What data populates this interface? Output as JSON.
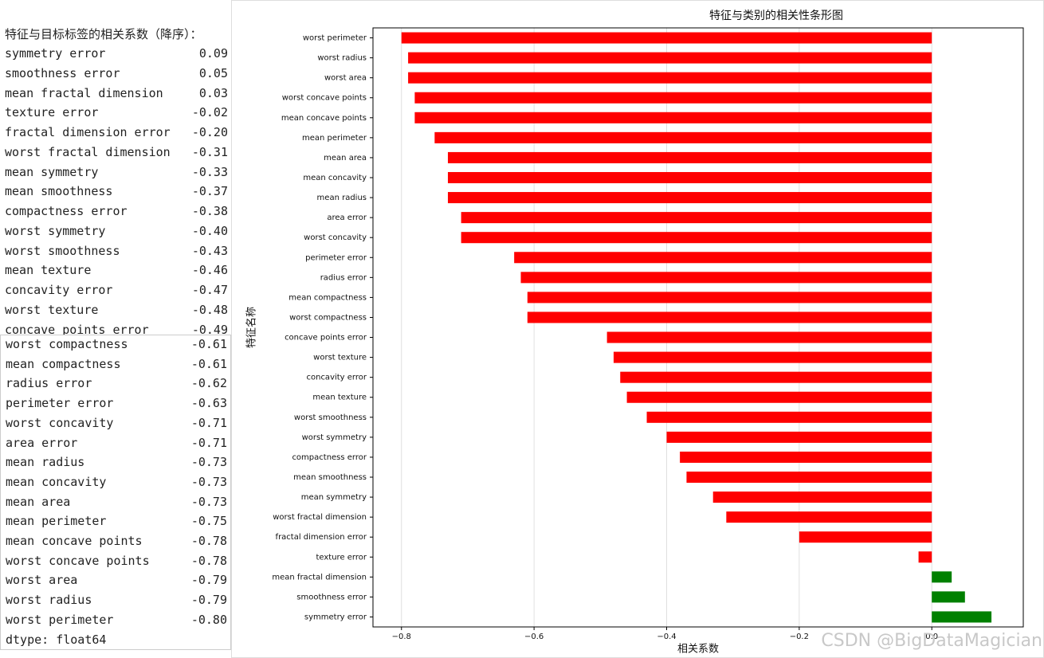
{
  "output": {
    "title": "特征与目标标签的相关系数（降序）：",
    "blocks": [
      [
        {
          "name": "symmetry error",
          "value": "0.09"
        },
        {
          "name": "smoothness error",
          "value": "0.05"
        },
        {
          "name": "mean fractal dimension",
          "value": "0.03"
        },
        {
          "name": "texture error",
          "value": "-0.02"
        },
        {
          "name": "fractal dimension error",
          "value": "-0.20"
        },
        {
          "name": "worst fractal dimension",
          "value": "-0.31"
        },
        {
          "name": "mean symmetry",
          "value": "-0.33"
        },
        {
          "name": "mean smoothness",
          "value": "-0.37"
        },
        {
          "name": "compactness error",
          "value": "-0.38"
        },
        {
          "name": "worst symmetry",
          "value": "-0.40"
        },
        {
          "name": "worst smoothness",
          "value": "-0.43"
        },
        {
          "name": "mean texture",
          "value": "-0.46"
        },
        {
          "name": "concavity error",
          "value": "-0.47"
        },
        {
          "name": "worst texture",
          "value": "-0.48"
        },
        {
          "name": "concave points error",
          "value": "-0.49"
        }
      ],
      [
        {
          "name": "worst compactness",
          "value": "-0.61"
        },
        {
          "name": "mean compactness",
          "value": "-0.61"
        },
        {
          "name": "radius error",
          "value": "-0.62"
        },
        {
          "name": "perimeter error",
          "value": "-0.63"
        },
        {
          "name": "worst concavity",
          "value": "-0.71"
        },
        {
          "name": "area error",
          "value": "-0.71"
        },
        {
          "name": "mean radius",
          "value": "-0.73"
        },
        {
          "name": "mean concavity",
          "value": "-0.73"
        },
        {
          "name": "mean area",
          "value": "-0.73"
        },
        {
          "name": "mean perimeter",
          "value": "-0.75"
        },
        {
          "name": "mean concave points",
          "value": "-0.78"
        },
        {
          "name": "worst concave points",
          "value": "-0.78"
        },
        {
          "name": "worst area",
          "value": "-0.79"
        },
        {
          "name": "worst radius",
          "value": "-0.79"
        },
        {
          "name": "worst perimeter",
          "value": "-0.80"
        }
      ]
    ],
    "dtype": "dtype: float64"
  },
  "chart_data": {
    "type": "barh",
    "title": "特征与类别的相关性条形图",
    "x_label": "相关系数",
    "y_label": "特征名称",
    "categories": [
      "worst perimeter",
      "worst radius",
      "worst area",
      "worst concave points",
      "mean concave points",
      "mean perimeter",
      "mean area",
      "mean concavity",
      "mean radius",
      "area error",
      "worst concavity",
      "perimeter error",
      "radius error",
      "mean compactness",
      "worst compactness",
      "concave points error",
      "worst texture",
      "concavity error",
      "mean texture",
      "worst smoothness",
      "worst symmetry",
      "compactness error",
      "mean smoothness",
      "mean symmetry",
      "worst fractal dimension",
      "fractal dimension error",
      "texture error",
      "mean fractal dimension",
      "smoothness error",
      "symmetry error"
    ],
    "values": [
      -0.8,
      -0.79,
      -0.79,
      -0.78,
      -0.78,
      -0.75,
      -0.73,
      -0.73,
      -0.73,
      -0.71,
      -0.71,
      -0.63,
      -0.62,
      -0.61,
      -0.61,
      -0.49,
      -0.48,
      -0.47,
      -0.46,
      -0.43,
      -0.4,
      -0.38,
      -0.37,
      -0.33,
      -0.31,
      -0.2,
      -0.02,
      0.03,
      0.05,
      0.09
    ],
    "negative_color": "#ff0000",
    "positive_color": "#008000",
    "xlim": [
      -0.843,
      0.138
    ],
    "xticks": [
      {
        "value": -0.8,
        "label": "−0.8"
      },
      {
        "value": -0.6,
        "label": "−0.6"
      },
      {
        "value": -0.4,
        "label": "−0.4"
      },
      {
        "value": -0.2,
        "label": "−0.2"
      },
      {
        "value": 0,
        "label": "0.0"
      }
    ],
    "grid": true,
    "watermark": "CSDN @BigDataMagician"
  }
}
